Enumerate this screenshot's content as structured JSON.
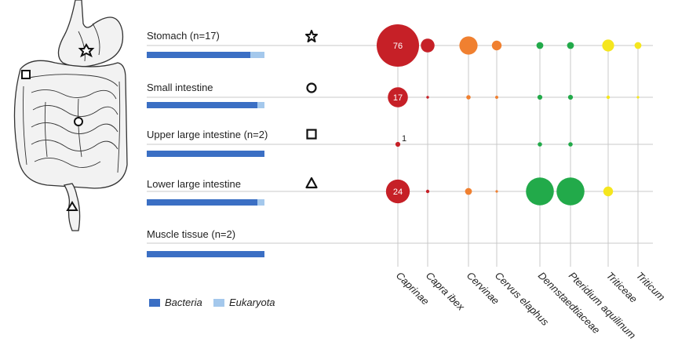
{
  "chart_data": [
    {
      "type": "bar",
      "stacked": true,
      "orientation": "horizontal",
      "categories": [
        "Stomach (n=17)",
        "Small intestine",
        "Upper large intestine (n=2)",
        "Lower large intestine",
        "Muscle tissue (n=2)"
      ],
      "series": [
        {
          "name": "Bacteria",
          "values": [
            0.88,
            0.94,
            1.0,
            0.94,
            1.0
          ]
        },
        {
          "name": "Eukaryota",
          "values": [
            0.12,
            0.06,
            0.0,
            0.06,
            0.0
          ]
        }
      ],
      "colors": {
        "Bacteria": "#3b6fc4",
        "Eukaryota": "#a4c8ec"
      },
      "symbols": [
        "star",
        "circle",
        "square",
        "triangle",
        ""
      ]
    },
    {
      "type": "scatter",
      "subtype": "bubble",
      "rows": [
        "Stomach (n=17)",
        "Small intestine",
        "Upper large intestine (n=2)",
        "Lower large intestine",
        "Muscle tissue (n=2)"
      ],
      "columns": [
        {
          "name": "Caprinae",
          "color": "#c62027"
        },
        {
          "name": "Capra ibex",
          "color": "#c62027"
        },
        {
          "name": "Cervinae",
          "color": "#f08030"
        },
        {
          "name": "Cervus elaphus",
          "color": "#f08030"
        },
        {
          "name": "Dennstaedtiaceae",
          "color": "#22aa4a"
        },
        {
          "name": "Pteridium aquilinum",
          "color": "#22aa4a"
        },
        {
          "name": "Triticeae",
          "color": "#f5e61e"
        },
        {
          "name": "Triticum",
          "color": "#f5e61e"
        }
      ],
      "values": [
        [
          76,
          8,
          14,
          4,
          2,
          2,
          6,
          2
        ],
        [
          17,
          0.3,
          0.8,
          0.4,
          1,
          1,
          0.5,
          0.2
        ],
        [
          1,
          0,
          0,
          0,
          0.8,
          0.8,
          0,
          0
        ],
        [
          24,
          0.5,
          2,
          0.2,
          33,
          33,
          4,
          0
        ],
        [
          0,
          0,
          0,
          0,
          0,
          0,
          0,
          0
        ]
      ],
      "labels": [
        "76",
        "17",
        "1",
        "24"
      ]
    }
  ]
}
